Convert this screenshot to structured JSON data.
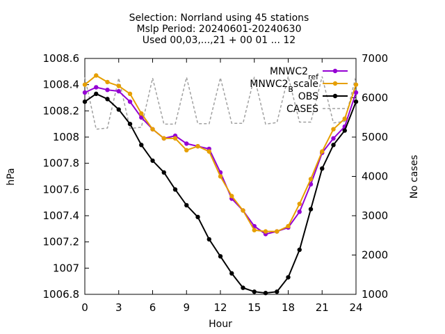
{
  "chart_data": {
    "type": "line",
    "title_lines": [
      "Selection: Norrland using    45 stations",
      "Mslp   Period: 20240601-20240630",
      "Used 00,03,...,21 + 00 01 ... 12"
    ],
    "xlabel": "Hour",
    "ylabel": "hPa",
    "y2label": "No cases",
    "xlim": [
      0,
      24
    ],
    "ylim": [
      1006.8,
      1008.6
    ],
    "y2lim": [
      1000,
      7000
    ],
    "xticks": [
      "0",
      "3",
      "6",
      "9",
      "12",
      "15",
      "18",
      "21",
      "24"
    ],
    "yticks": [
      "1006.8",
      "1007",
      "1007.2",
      "1007.4",
      "1007.6",
      "1007.8",
      "1008",
      "1008.2",
      "1008.4",
      "1008.6"
    ],
    "y2ticks": [
      "1000",
      "2000",
      "3000",
      "4000",
      "5000",
      "6000",
      "7000"
    ],
    "legend_position": "top-right",
    "x": [
      0,
      1,
      2,
      3,
      4,
      5,
      6,
      7,
      8,
      9,
      10,
      11,
      12,
      13,
      14,
      15,
      16,
      17,
      18,
      19,
      20,
      21,
      22,
      23,
      24
    ],
    "series": [
      {
        "name": "MNWC2_ref",
        "legend_parts": [
          [
            "MNWC2",
            ""
          ],
          [
            "ref",
            "sub"
          ]
        ],
        "color": "#9400d3",
        "marker": "filled-circle",
        "values": [
          1008.34,
          1008.38,
          1008.36,
          1008.35,
          1008.27,
          1008.15,
          1008.06,
          1007.99,
          1008.01,
          1007.95,
          1007.93,
          1007.91,
          1007.73,
          1007.53,
          1007.44,
          1007.32,
          1007.26,
          1007.28,
          1007.31,
          1007.43,
          1007.64,
          1007.88,
          1007.99,
          1008.08,
          1008.34
        ]
      },
      {
        "name": "MNWC2_Bscale",
        "legend_parts": [
          [
            "MNWC2",
            ""
          ],
          [
            "B",
            "sub"
          ],
          [
            "scale",
            ""
          ]
        ],
        "color": "#e69f00",
        "marker": "filled-circle",
        "values": [
          1008.4,
          1008.47,
          1008.42,
          1008.39,
          1008.33,
          1008.18,
          1008.06,
          1007.99,
          1007.99,
          1007.9,
          1007.93,
          1007.89,
          1007.7,
          1007.55,
          1007.44,
          1007.29,
          1007.28,
          1007.28,
          1007.32,
          1007.49,
          1007.68,
          1007.89,
          1008.06,
          1008.14,
          1008.4
        ]
      },
      {
        "name": "OBS",
        "legend_parts": [
          [
            "OBS",
            ""
          ]
        ],
        "color": "#000000",
        "marker": "filled-circle",
        "values": [
          1008.27,
          1008.33,
          1008.29,
          1008.21,
          1008.1,
          1007.94,
          1007.82,
          1007.73,
          1007.6,
          1007.48,
          1007.39,
          1007.22,
          1007.09,
          1006.96,
          1006.85,
          1006.82,
          1006.81,
          1006.82,
          1006.93,
          1007.14,
          1007.45,
          1007.76,
          1007.94,
          1008.05,
          1008.27
        ]
      },
      {
        "name": "CASES",
        "legend_parts": [
          [
            "CASES",
            ""
          ]
        ],
        "color": "#a0a0a0",
        "dashed": true,
        "axis": "y2",
        "values": [
          6520,
          5200,
          5230,
          6500,
          5220,
          5250,
          6500,
          5330,
          5330,
          6520,
          5340,
          5340,
          6510,
          5350,
          5350,
          6530,
          5330,
          5370,
          6540,
          5380,
          5380,
          6540,
          5360,
          5400,
          6560
        ]
      }
    ]
  }
}
